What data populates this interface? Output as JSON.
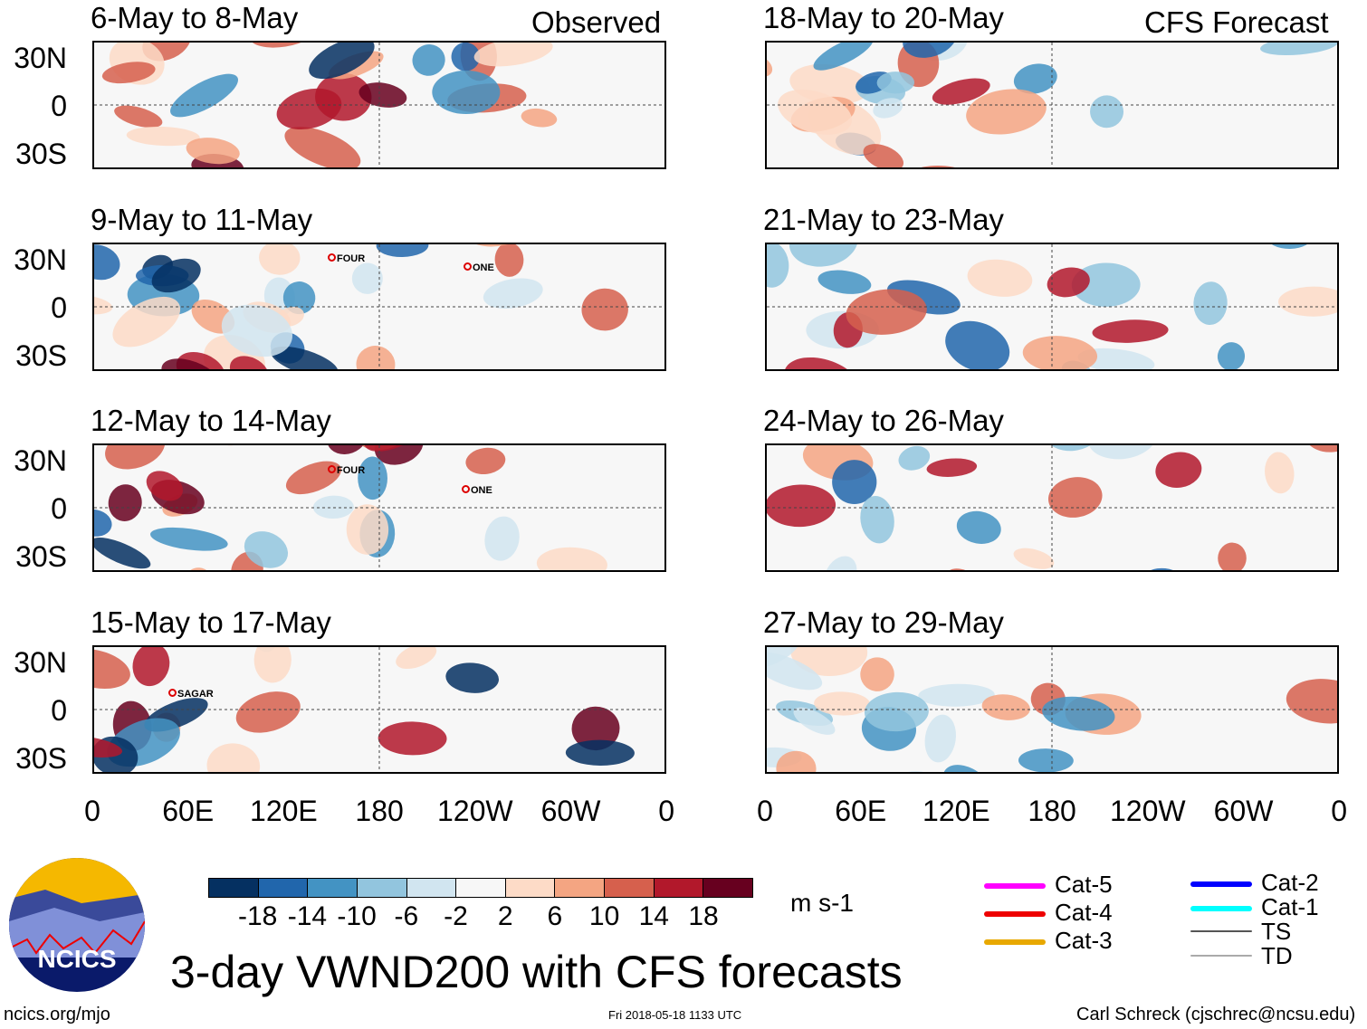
{
  "headers": {
    "observed": "Observed",
    "forecast": "CFS Forecast"
  },
  "panels_observed": [
    {
      "title": "6-May to 8-May",
      "storms": []
    },
    {
      "title": "9-May to 11-May",
      "storms": [
        "FOUR",
        "ONE"
      ]
    },
    {
      "title": "12-May to 14-May",
      "storms": [
        "FOUR",
        "ONE"
      ]
    },
    {
      "title": "15-May to 17-May",
      "storms": [
        "SAGAR"
      ]
    }
  ],
  "panels_forecast": [
    {
      "title": "18-May to 20-May"
    },
    {
      "title": "21-May to 23-May"
    },
    {
      "title": "24-May to 26-May"
    },
    {
      "title": "27-May to 29-May"
    }
  ],
  "y_ticks": [
    "30N",
    "0",
    "30S"
  ],
  "x_ticks": [
    "0",
    "60E",
    "120E",
    "180",
    "120W",
    "60W",
    "0"
  ],
  "colorbar": {
    "colors": [
      "#053061",
      "#2166ac",
      "#4393c3",
      "#92c5de",
      "#d1e5f0",
      "#f7f7f7",
      "#fddbc7",
      "#f4a582",
      "#d6604d",
      "#b2182b",
      "#67001f"
    ],
    "labels": [
      "-18",
      "-14",
      "-10",
      "-6",
      "-2",
      "2",
      "6",
      "10",
      "14",
      "18"
    ],
    "units": "m s-1"
  },
  "storm_legend": [
    {
      "label": "Cat-5",
      "color": "#ff00ff"
    },
    {
      "label": "Cat-4",
      "color": "#ee0000"
    },
    {
      "label": "Cat-3",
      "color": "#e8a800"
    },
    {
      "label": "Cat-2",
      "color": "#0000ff"
    },
    {
      "label": "Cat-1",
      "color": "#00ffff"
    },
    {
      "label": "TS",
      "color": "#555555"
    },
    {
      "label": "TD",
      "color": "#aaaaaa"
    }
  ],
  "logo": "NCICS",
  "title": "3-day VWND200 with CFS forecasts",
  "footer": {
    "left": "ncics.org/mjo",
    "center": "Fri 2018-05-18 1133 UTC",
    "right": "Carl Schreck (cjschrec@ncsu.edu)"
  }
}
